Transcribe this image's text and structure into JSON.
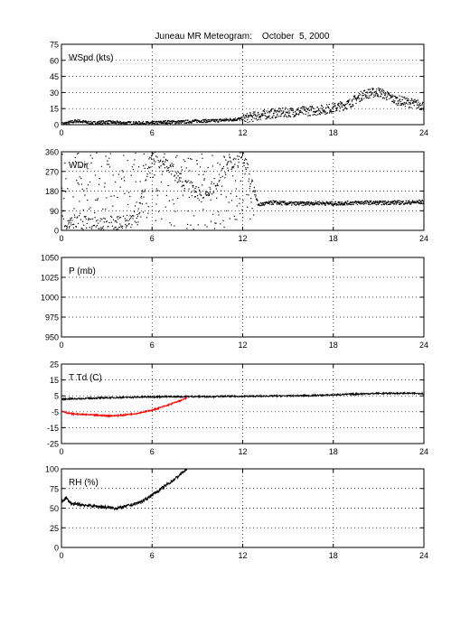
{
  "title": "Juneau MR Meteogram:    October  5, 2000",
  "x_axis": {
    "ticks": [
      0,
      6,
      12,
      18,
      24
    ],
    "range": [
      0,
      24
    ],
    "grid": true
  },
  "chart_data": [
    {
      "type": "scatter",
      "label": "WSpd (kts)",
      "ylim": [
        0,
        75
      ],
      "yticks": [
        0,
        15,
        30,
        45,
        60,
        75
      ],
      "grid": true,
      "series": [
        {
          "color": "#000000",
          "marker": "dot",
          "x": [
            0,
            1,
            2,
            3,
            4,
            5,
            6,
            7,
            8,
            9,
            10,
            11,
            12,
            13,
            14,
            15,
            16,
            17,
            18,
            19,
            20,
            21,
            22,
            23,
            24
          ],
          "y": [
            1,
            4,
            2,
            3,
            2,
            2,
            2,
            3,
            3,
            4,
            4,
            5,
            6,
            9,
            11,
            12,
            13,
            14,
            16,
            20,
            29,
            31,
            24,
            21,
            18
          ]
        }
      ]
    },
    {
      "type": "scatter",
      "label": "WDir",
      "ylim": [
        0,
        360
      ],
      "yticks": [
        0,
        90,
        180,
        270,
        360
      ],
      "grid": true,
      "series": [
        {
          "color": "#000000",
          "marker": "dot",
          "x": [
            0,
            1,
            2,
            3,
            4,
            5,
            6,
            7,
            8,
            9,
            10,
            11,
            12,
            13,
            14,
            15,
            16,
            17,
            18,
            19,
            20,
            21,
            22,
            23,
            24
          ],
          "y": [
            15,
            40,
            30,
            25,
            40,
            60,
            340,
            300,
            230,
            170,
            200,
            300,
            340,
            120,
            130,
            125,
            125,
            128,
            125,
            128,
            130,
            128,
            130,
            130,
            133
          ]
        }
      ]
    },
    {
      "type": "line",
      "label": "P (mb)",
      "ylim": [
        950,
        1050
      ],
      "yticks": [
        950,
        975,
        1000,
        1025,
        1050
      ],
      "grid": true,
      "series": []
    },
    {
      "type": "line",
      "label": "T Td (C)",
      "ylim": [
        -25,
        25
      ],
      "yticks": [
        -25,
        -15,
        -5,
        5,
        15,
        25
      ],
      "grid": true,
      "series": [
        {
          "color": "#000000",
          "x": [
            0,
            1,
            2,
            3,
            4,
            5,
            6,
            7,
            8,
            9,
            10,
            11,
            12,
            13,
            14,
            15,
            16,
            17,
            18,
            19,
            20,
            21,
            22,
            23,
            24
          ],
          "y": [
            3,
            3.2,
            3.5,
            3.8,
            4,
            4.2,
            4.4,
            4.5,
            4.5,
            4.6,
            4.6,
            4.7,
            4.7,
            4.8,
            4.9,
            5,
            5.1,
            5.3,
            5.6,
            6,
            6.3,
            6.5,
            6.6,
            6.6,
            6.5
          ]
        },
        {
          "color": "#ff0000",
          "x": [
            0,
            0.5,
            1,
            2,
            3,
            3.5,
            4,
            5,
            6,
            7,
            8,
            8.3
          ],
          "y": [
            -4.5,
            -6,
            -6.5,
            -7,
            -7.5,
            -7.5,
            -7.2,
            -6,
            -4,
            -1,
            2.5,
            3.8
          ]
        }
      ]
    },
    {
      "type": "line",
      "label": "RH (%)",
      "ylim": [
        0,
        100
      ],
      "yticks": [
        0,
        25,
        50,
        75,
        100
      ],
      "grid": true,
      "series": [
        {
          "color": "#000000",
          "x": [
            0,
            0.3,
            0.7,
            1,
            2,
            3,
            3.5,
            4,
            5,
            5.5,
            6,
            6.5,
            7,
            7.5,
            8,
            8.3
          ],
          "y": [
            58,
            63,
            55,
            55,
            53,
            51,
            50,
            51,
            56,
            60,
            67,
            73,
            80,
            87,
            95,
            99
          ]
        }
      ]
    }
  ]
}
